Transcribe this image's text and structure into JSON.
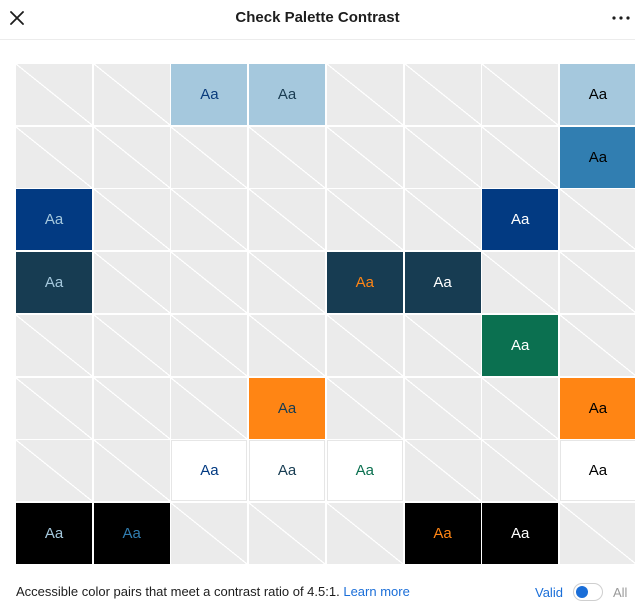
{
  "header": {
    "title": "Check Palette Contrast",
    "close_icon": "close-icon",
    "more_icon": "more-options-icon"
  },
  "grid": {
    "rows": 8,
    "cols": 8,
    "sample_text": "Aa",
    "cells": [
      [
        null,
        null,
        {
          "bg": "#a5c8dd",
          "fg": "#093b7c"
        },
        {
          "bg": "#a5c8dd",
          "fg": "#1a3c52"
        },
        null,
        null,
        null,
        {
          "bg": "#a5c8dd",
          "fg": "#000000"
        }
      ],
      [
        null,
        null,
        null,
        null,
        null,
        null,
        null,
        {
          "bg": "#317eb1",
          "fg": "#000000"
        }
      ],
      [
        {
          "bg": "#023a82",
          "fg": "#a5c8dd"
        },
        null,
        null,
        null,
        null,
        null,
        {
          "bg": "#023a82",
          "fg": "#ffffff"
        },
        null
      ],
      [
        {
          "bg": "#173c52",
          "fg": "#a5c8dd"
        },
        null,
        null,
        null,
        {
          "bg": "#173c52",
          "fg": "#ff8514"
        },
        {
          "bg": "#173c52",
          "fg": "#ffffff"
        },
        null,
        null
      ],
      [
        null,
        null,
        null,
        null,
        null,
        null,
        {
          "bg": "#0b7050",
          "fg": "#ffffff"
        },
        null
      ],
      [
        null,
        null,
        null,
        {
          "bg": "#ff8514",
          "fg": "#173c52"
        },
        null,
        null,
        null,
        {
          "bg": "#ff8514",
          "fg": "#000000"
        }
      ],
      [
        null,
        null,
        {
          "bg": "#ffffff",
          "fg": "#023a82"
        },
        {
          "bg": "#ffffff",
          "fg": "#173c52"
        },
        {
          "bg": "#ffffff",
          "fg": "#0b7050"
        },
        null,
        null,
        {
          "bg": "#ffffff",
          "fg": "#000000"
        }
      ],
      [
        {
          "bg": "#000000",
          "fg": "#a5c8dd"
        },
        {
          "bg": "#000000",
          "fg": "#317eb1"
        },
        null,
        null,
        null,
        {
          "bg": "#000000",
          "fg": "#ff8514"
        },
        {
          "bg": "#000000",
          "fg": "#ffffff"
        },
        null
      ]
    ]
  },
  "footer": {
    "description": "Accessible color pairs that meet a contrast ratio of 4.5:1.",
    "learn_more": "Learn more",
    "valid_label": "Valid",
    "all_label": "All",
    "filter_selected": "Valid"
  },
  "colors": {
    "accent": "#1a6ed8",
    "empty_cell": "#ebebeb"
  }
}
